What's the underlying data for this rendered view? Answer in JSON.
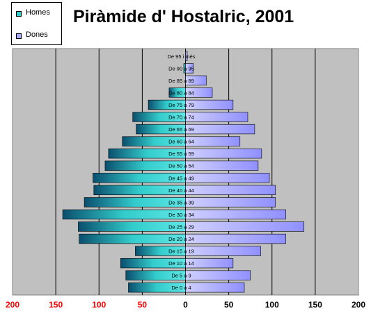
{
  "chart_data": {
    "type": "bar",
    "title": "Piràmide d' Hostalric, 2001",
    "legend_position": "top-left",
    "grid": true,
    "orientation": "horizontal",
    "categories": [
      "De 0 a 4",
      "De 5 a 9",
      "De 10 a 14",
      "De 15 a 19",
      "De 20 a 24",
      "De 25 a 29",
      "De 30 a 34",
      "De 35 a 39",
      "De 40 a 44",
      "De 45 a 49",
      "De 50 a 54",
      "De 55 a 59",
      "De 60 a 64",
      "De 65 a 69",
      "De 70 a 74",
      "De 75 a 79",
      "De 80 a 84",
      "De 85 a 89",
      "De 90 a 95",
      "De 95 i més"
    ],
    "series": [
      {
        "name": "Homes",
        "values": [
          66,
          69,
          75,
          58,
          123,
          124,
          142,
          117,
          106,
          107,
          93,
          89,
          73,
          57,
          61,
          43,
          19,
          0,
          2,
          0
        ]
      },
      {
        "name": "Dones",
        "values": [
          68,
          75,
          55,
          87,
          116,
          137,
          116,
          104,
          104,
          97,
          84,
          88,
          63,
          80,
          72,
          55,
          31,
          24,
          9,
          2
        ]
      }
    ],
    "xlim": [
      -200,
      200
    ],
    "xticks": [
      "200",
      "150",
      "100",
      "50",
      "0",
      "50",
      "100",
      "150",
      "200"
    ],
    "colors": {
      "homes": "#33cccc",
      "homes_dark": "#0a4f6e",
      "dones": "#a8a8ff",
      "plot_bg": "#c0c0c0",
      "tick_red": "#ff0000"
    }
  }
}
